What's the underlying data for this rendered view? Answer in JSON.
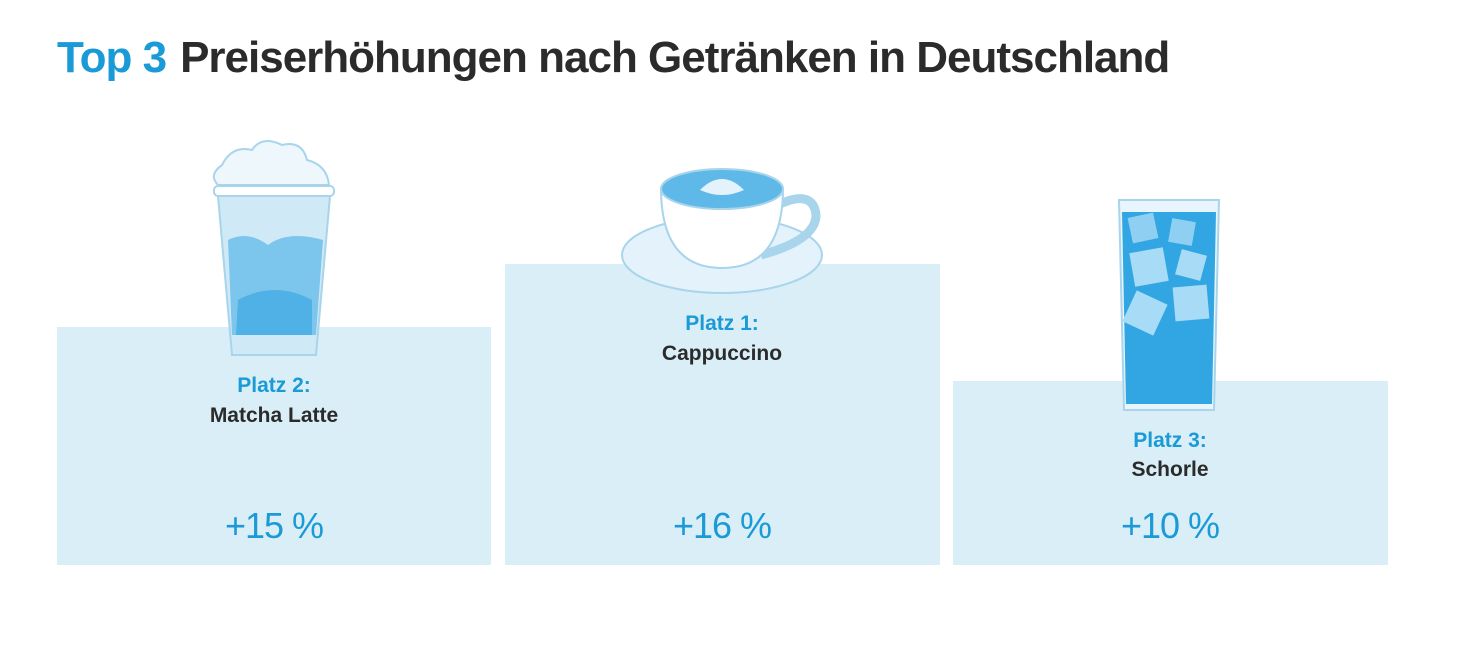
{
  "header": {
    "highlight": "Top 3",
    "title": "Preiserhöhungen nach Getränken in Deutschland"
  },
  "podium": [
    {
      "place": "Platz 2:",
      "name": "Matcha Latte",
      "change": "+15 %"
    },
    {
      "place": "Platz 1:",
      "name": "Cappuccino",
      "change": "+16 %"
    },
    {
      "place": "Platz 3:",
      "name": "Schorle",
      "change": "+10 %"
    }
  ]
}
